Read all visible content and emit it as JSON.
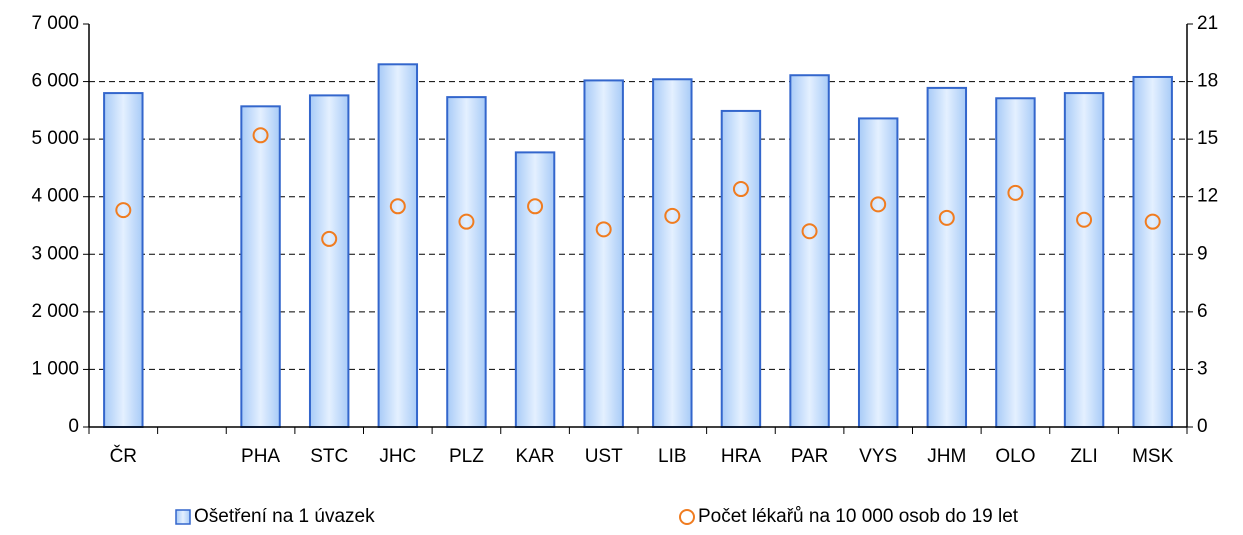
{
  "chart_data": {
    "type": "bar",
    "categories": [
      "ČR",
      null,
      "PHA",
      "STC",
      "JHC",
      "PLZ",
      "KAR",
      "UST",
      "LIB",
      "HRA",
      "PAR",
      "VYS",
      "JHM",
      "OLO",
      "ZLI",
      "MSK"
    ],
    "series": [
      {
        "name": "Ošetření na 1 úvazek",
        "type": "bar",
        "color": "#3366cc",
        "values": [
          5800,
          null,
          5570,
          5760,
          6300,
          5730,
          4770,
          6020,
          6040,
          5490,
          6110,
          5360,
          5890,
          5710,
          5800,
          6080
        ]
      },
      {
        "name": "Počet lékařů na 10 000 osob do 19 let",
        "type": "scatter",
        "axis": "y2",
        "color": "#f07c20",
        "values": [
          11.3,
          null,
          15.2,
          9.8,
          11.5,
          10.7,
          11.5,
          10.3,
          11.0,
          12.4,
          10.2,
          11.6,
          10.9,
          12.2,
          10.8,
          10.7
        ]
      }
    ],
    "ylim": [
      0,
      7000
    ],
    "yticks": [
      {
        "value": 0,
        "label": "0"
      },
      {
        "value": 1000,
        "label": "1 000"
      },
      {
        "value": 2000,
        "label": "2 000"
      },
      {
        "value": 3000,
        "label": "3 000"
      },
      {
        "value": 4000,
        "label": "4 000"
      },
      {
        "value": 5000,
        "label": "5 000"
      },
      {
        "value": 6000,
        "label": "6 000"
      },
      {
        "value": 7000,
        "label": "7 000"
      }
    ],
    "y2lim": [
      0,
      21
    ],
    "y2ticks": [
      0,
      3,
      6,
      9,
      12,
      15,
      18,
      21
    ],
    "grid": true,
    "legend": "bottom"
  }
}
